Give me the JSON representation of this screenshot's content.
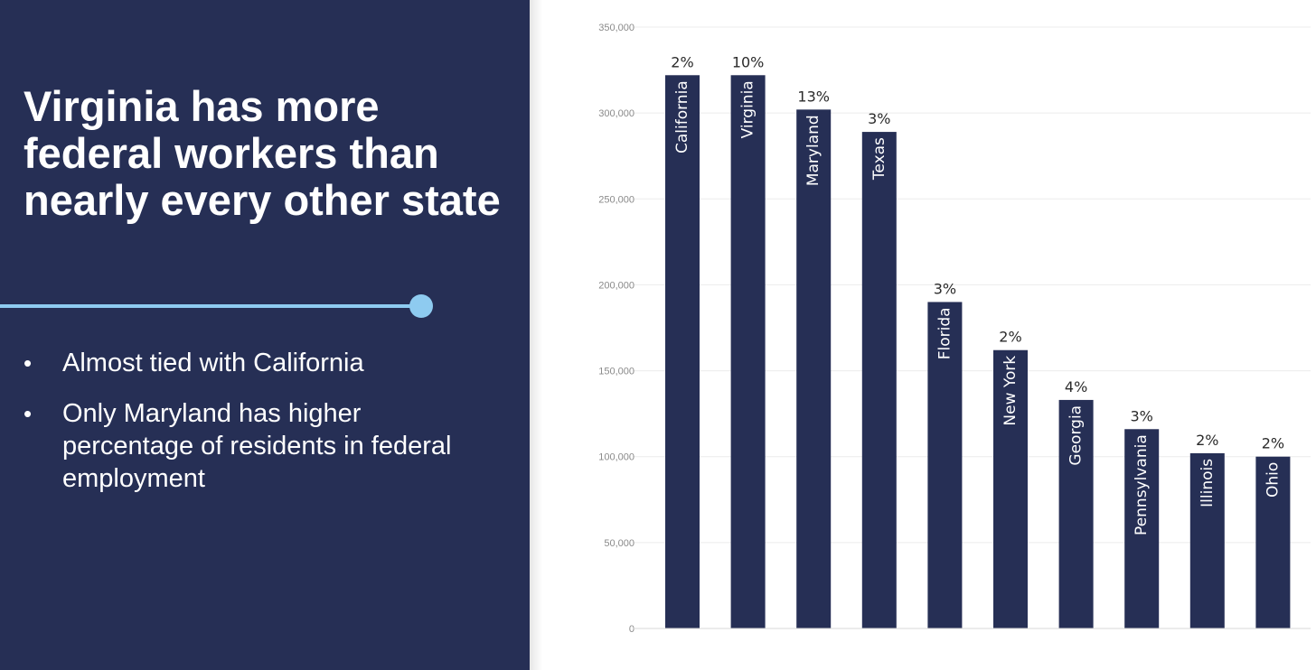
{
  "left_panel": {
    "title": "Virginia has more federal workers than nearly every other state",
    "bullets": [
      "Almost tied with California",
      "Only Maryland has higher percentage of residents in federal employment"
    ],
    "background_color": "#262f55",
    "accent_color": "#8ecbf0"
  },
  "chart_data": {
    "type": "bar",
    "title": "",
    "xlabel": "",
    "ylabel": "",
    "categories": [
      "California",
      "Virginia",
      "Maryland",
      "Texas",
      "Florida",
      "New York",
      "Georgia",
      "Pennsylvania",
      "Illinois",
      "Ohio"
    ],
    "values": [
      322000,
      322000,
      302000,
      289000,
      190000,
      162000,
      133000,
      116000,
      102000,
      100000
    ],
    "data_labels": [
      "2%",
      "10%",
      "13%",
      "3%",
      "3%",
      "2%",
      "4%",
      "3%",
      "2%",
      "2%"
    ],
    "yticks": [
      "0",
      "50,000",
      "100,000",
      "150,000",
      "200,000",
      "250,000",
      "300,000",
      "350,000"
    ],
    "ylim": [
      0,
      350000
    ],
    "grid": true,
    "legend": "none",
    "bar_color": "#262f55"
  }
}
